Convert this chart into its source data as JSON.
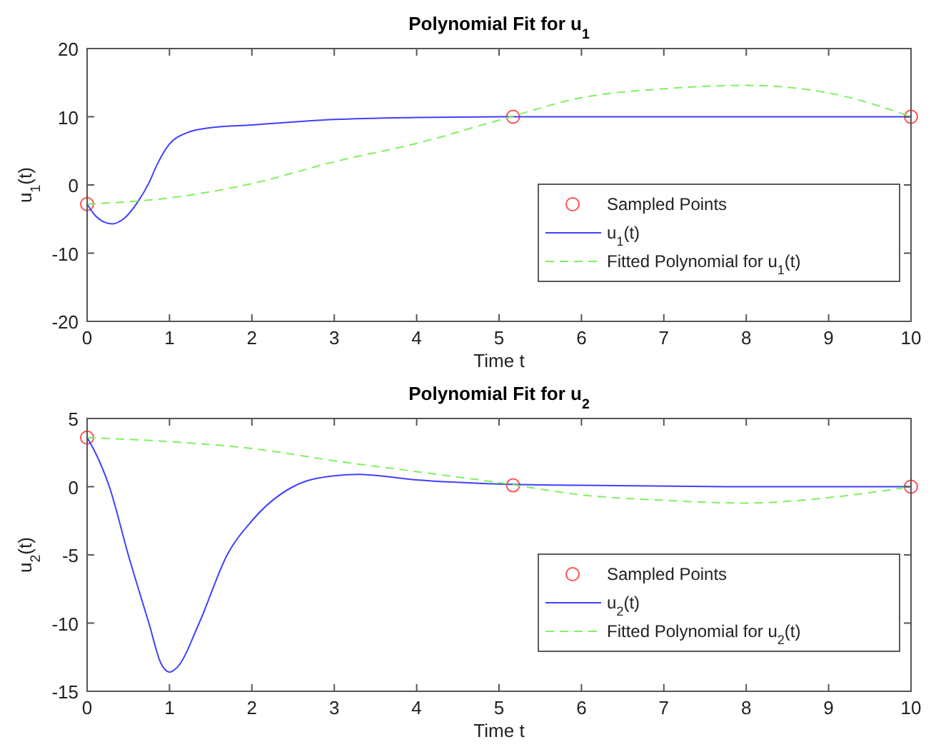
{
  "chart_data": [
    {
      "type": "line",
      "title": "Polynomial Fit for u$_{1}$",
      "xlabel": "Time t",
      "ylabel": "u$_{1}$(t)",
      "xlim": [
        0,
        10
      ],
      "ylim": [
        -20,
        20
      ],
      "xticks": [
        0,
        1,
        2,
        3,
        4,
        5,
        6,
        7,
        8,
        9,
        10
      ],
      "yticks": [
        -20,
        -10,
        0,
        10,
        20
      ],
      "legend": "bottom right",
      "series": [
        {
          "type": "scatter",
          "name": "Sampled Points",
          "color": "#ff5050",
          "marker": "circle",
          "x": [
            0,
            5.17,
            10
          ],
          "values": [
            -2.8,
            10,
            10
          ]
        },
        {
          "name": "u$_{1}$(t)",
          "color": "#4040ff",
          "line_style": "solid",
          "x": [
            0,
            0.1,
            0.2,
            0.31,
            0.45,
            0.62,
            0.75,
            0.85,
            1,
            1.2,
            1.5,
            2,
            3,
            4,
            5,
            6,
            8,
            10
          ],
          "values": [
            -2.8,
            -4.5,
            -5.4,
            -5.7,
            -4.9,
            -2.4,
            0.3,
            3,
            6,
            7.6,
            8.4,
            8.8,
            9.6,
            9.9,
            10,
            10,
            10,
            10
          ]
        },
        {
          "name": "Fitted Polynomial for u$_{1}$(t)",
          "color": "#80f060",
          "line_style": "dashed",
          "x": [
            0,
            1,
            2,
            3,
            4,
            5,
            6,
            7,
            8,
            9,
            10
          ],
          "values": [
            -2.8,
            -1.9,
            0.2,
            3.4,
            6.1,
            9.5,
            12.8,
            14.1,
            14.6,
            13.5,
            10
          ]
        }
      ]
    },
    {
      "type": "line",
      "title": "Polynomial Fit for u$_{2}$",
      "xlabel": "Time t",
      "ylabel": "u$_{2}$(t)",
      "xlim": [
        0,
        10
      ],
      "ylim": [
        -15,
        5
      ],
      "xticks": [
        0,
        1,
        2,
        3,
        4,
        5,
        6,
        7,
        8,
        9,
        10
      ],
      "yticks": [
        -15,
        -10,
        -5,
        0,
        5
      ],
      "legend": "bottom right",
      "series": [
        {
          "type": "scatter",
          "name": "Sampled Points",
          "color": "#ff5050",
          "marker": "circle",
          "x": [
            0,
            5.17,
            10
          ],
          "values": [
            3.6,
            0.1,
            0
          ]
        },
        {
          "name": "u$_{2}$(t)",
          "color": "#4040ff",
          "line_style": "solid",
          "x": [
            0,
            0.1,
            0.27,
            0.5,
            0.75,
            0.9,
            1,
            1.1,
            1.36,
            1.7,
            2,
            2.5,
            3,
            3.3,
            4,
            5,
            6,
            8,
            10
          ],
          "values": [
            3.6,
            2.5,
            0,
            -5,
            -10,
            -13,
            -13.6,
            -13.2,
            -10,
            -5,
            -2.5,
            0,
            0.8,
            0.9,
            0.5,
            0.2,
            0.1,
            0,
            0
          ]
        },
        {
          "name": "Fitted Polynomial for u$_{2}$(t)",
          "color": "#80f060",
          "line_style": "dashed",
          "x": [
            0,
            1,
            2,
            3,
            4,
            5,
            6,
            7,
            8,
            9,
            10
          ],
          "values": [
            3.6,
            3.3,
            2.8,
            1.9,
            1.1,
            0.3,
            -0.6,
            -1,
            -1.2,
            -0.8,
            0
          ]
        }
      ]
    }
  ]
}
